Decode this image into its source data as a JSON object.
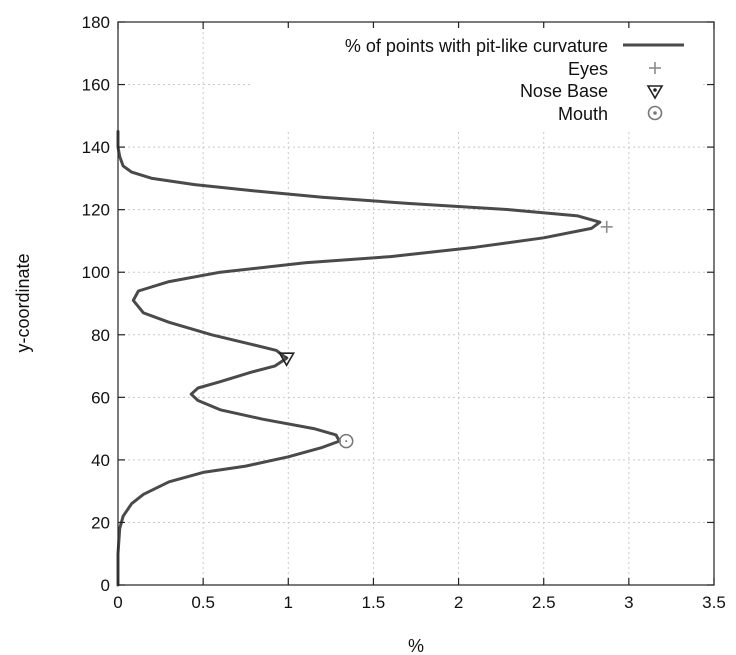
{
  "chart_data": {
    "type": "line",
    "xlabel": "%",
    "ylabel": "y-coordinate",
    "xlim": [
      0,
      3.5
    ],
    "ylim": [
      0,
      180
    ],
    "x_ticks": [
      "0",
      "0.5",
      "1",
      "1.5",
      "2",
      "2.5",
      "3",
      "3.5"
    ],
    "y_ticks": [
      "0",
      "20",
      "40",
      "60",
      "80",
      "100",
      "120",
      "140",
      "160",
      "180"
    ],
    "grid": true,
    "legend_position": "top-right",
    "series": [
      {
        "name": "% of points with pit-like curvature",
        "type": "line",
        "color": "#4a4a4a",
        "points": [
          [
            0.0,
            0
          ],
          [
            0.0,
            10
          ],
          [
            0.01,
            18
          ],
          [
            0.03,
            22
          ],
          [
            0.08,
            26
          ],
          [
            0.15,
            29
          ],
          [
            0.3,
            33
          ],
          [
            0.5,
            36
          ],
          [
            0.75,
            38
          ],
          [
            1.0,
            41
          ],
          [
            1.2,
            44
          ],
          [
            1.3,
            46
          ],
          [
            1.28,
            48
          ],
          [
            1.15,
            50
          ],
          [
            0.85,
            53
          ],
          [
            0.6,
            56
          ],
          [
            0.47,
            59
          ],
          [
            0.43,
            61
          ],
          [
            0.47,
            63
          ],
          [
            0.6,
            65
          ],
          [
            0.78,
            68
          ],
          [
            0.92,
            70
          ],
          [
            0.99,
            72.5
          ],
          [
            0.93,
            75
          ],
          [
            0.78,
            77
          ],
          [
            0.55,
            80
          ],
          [
            0.3,
            84
          ],
          [
            0.15,
            87
          ],
          [
            0.09,
            91
          ],
          [
            0.12,
            94
          ],
          [
            0.3,
            97
          ],
          [
            0.6,
            100
          ],
          [
            1.1,
            103
          ],
          [
            1.6,
            105
          ],
          [
            2.1,
            108
          ],
          [
            2.5,
            111
          ],
          [
            2.78,
            114
          ],
          [
            2.83,
            116
          ],
          [
            2.7,
            118
          ],
          [
            2.3,
            120
          ],
          [
            1.7,
            122
          ],
          [
            1.2,
            124
          ],
          [
            0.8,
            126
          ],
          [
            0.45,
            128
          ],
          [
            0.2,
            130
          ],
          [
            0.08,
            132
          ],
          [
            0.03,
            134
          ],
          [
            0.01,
            137
          ],
          [
            0.0,
            140
          ],
          [
            0.0,
            145
          ]
        ]
      },
      {
        "name": "Eyes",
        "type": "marker",
        "marker": "plus",
        "color": "#8c8c8c",
        "points": [
          [
            2.87,
            114.5
          ]
        ]
      },
      {
        "name": "Nose Base",
        "type": "marker",
        "marker": "triangle-down",
        "color": "#222222",
        "points": [
          [
            0.99,
            72.5
          ]
        ]
      },
      {
        "name": "Mouth",
        "type": "marker",
        "marker": "circle-dot",
        "color": "#777777",
        "points": [
          [
            1.34,
            46
          ]
        ]
      }
    ]
  }
}
